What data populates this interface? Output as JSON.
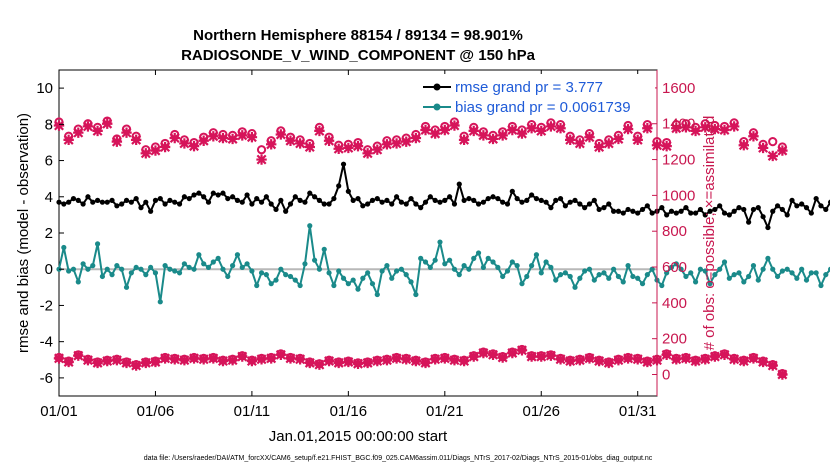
{
  "chart_data": {
    "type": "line",
    "title_line1": "Northern Hemisphere 88154 / 89134 = 98.901%",
    "title_line2": "RADIOSONDE_V_WIND_COMPONENT @ 150 hPa",
    "xlabel": "Jan.01,2015 00:00:00 start",
    "ylabel_left": "rmse and bias (model - observation)",
    "ylabel_right": "# of obs: o=possible; ×=assimilated",
    "footnote": "data file: /Users/raeder/DAI/ATM_forcXX/CAM6_setup/f.e21.FHIST_BGC.f09_025.CAM6assim.011/Diags_NTrS_2017-02/Diags_NTrS_2015-01/obs_diag_output.nc",
    "x_tick_values": [
      1,
      6,
      11,
      16,
      21,
      26,
      31
    ],
    "x_tick_labels": [
      "01/01",
      "01/06",
      "01/11",
      "01/16",
      "01/21",
      "01/26",
      "01/31"
    ],
    "xlim": [
      1,
      32
    ],
    "ylim_left": [
      -7,
      11
    ],
    "ylim_right": [
      -120,
      1700
    ],
    "y_left_ticks": [
      10,
      8,
      6,
      4,
      2,
      0,
      -2,
      -4,
      -6
    ],
    "y_right_ticks": [
      1600,
      1400,
      1200,
      1000,
      800,
      600,
      400,
      200,
      0
    ],
    "zero_line": 0,
    "colors": {
      "rmse": "#000000",
      "bias": "#1a8a8a",
      "obs": "#d6145a",
      "zero": "#b8b8b8",
      "legend_text": "#1f5bd8",
      "right_axis": "#c8174f"
    },
    "series": [
      {
        "name": "rmse grand pr = 3.777",
        "axis": "left",
        "x_start": 1,
        "x_step": 0.25,
        "values": [
          3.7,
          3.6,
          3.7,
          3.9,
          3.8,
          3.6,
          4.0,
          3.7,
          3.8,
          3.7,
          3.7,
          3.8,
          3.5,
          3.6,
          3.8,
          3.7,
          3.9,
          3.4,
          3.7,
          3.2,
          3.8,
          3.9,
          3.6,
          3.8,
          3.7,
          3.6,
          4.0,
          3.9,
          4.1,
          4.2,
          4.0,
          3.7,
          4.2,
          4.1,
          4.2,
          3.9,
          4.0,
          3.8,
          3.7,
          4.1,
          3.6,
          3.9,
          3.7,
          4.0,
          3.6,
          3.3,
          3.8,
          3.2,
          3.6,
          4.0,
          3.8,
          3.7,
          4.2,
          4.0,
          3.8,
          3.6,
          3.6,
          3.9,
          4.6,
          5.8,
          4.3,
          3.8,
          3.9,
          3.5,
          3.6,
          3.8,
          3.9,
          3.7,
          3.8,
          3.6,
          4.0,
          3.7,
          3.6,
          3.9,
          3.6,
          3.4,
          3.7,
          4.0,
          3.8,
          3.7,
          3.8,
          4.0,
          3.6,
          4.7,
          3.8,
          3.9,
          3.8,
          3.6,
          3.7,
          3.9,
          4.0,
          3.9,
          3.7,
          3.6,
          4.3,
          3.9,
          3.7,
          3.8,
          4.1,
          3.9,
          3.8,
          3.7,
          3.4,
          3.8,
          3.9,
          3.5,
          3.7,
          3.8,
          3.6,
          3.4,
          3.6,
          3.8,
          3.3,
          3.4,
          3.6,
          3.2,
          3.2,
          3.1,
          3.3,
          3.2,
          3.1,
          3.3,
          3.5,
          3.1,
          3.2,
          3.4,
          3.0,
          3.2,
          3.1,
          3.2,
          3.4,
          3.1,
          3.1,
          3.3,
          3.0,
          3.2,
          3.3,
          3.5,
          3.1,
          3.0,
          3.2,
          3.4,
          3.3,
          2.6,
          3.3,
          3.4,
          2.9,
          2.3,
          3.2,
          3.5,
          3.3,
          3.0,
          3.8,
          3.5,
          3.6,
          3.4,
          3.1,
          3.9,
          3.5,
          3.3,
          3.7,
          3.4,
          3.8,
          3.6,
          3.7,
          3.5,
          3.9,
          3.5,
          3.6,
          3.8,
          4.0,
          3.9,
          3.7,
          3.5,
          3.6,
          3.6,
          3.8,
          4.3,
          3.7,
          3.8,
          3.8,
          3.7,
          3.8,
          3.6,
          3.5,
          3.3,
          3.5,
          3.6,
          3.4,
          3.4,
          3.7,
          3.5,
          3.2,
          3.6,
          3.5,
          3.3,
          3.6,
          3.0,
          3.6,
          2.7
        ]
      },
      {
        "name": "bias grand pr = 0.0061739",
        "axis": "left",
        "x_start": 1,
        "x_step": 0.25,
        "values": [
          0.0,
          1.2,
          -0.1,
          0.0,
          -0.7,
          0.3,
          0.0,
          0.2,
          1.4,
          -0.4,
          0.0,
          -0.3,
          0.2,
          0.0,
          -1.0,
          -0.2,
          0.1,
          0.0,
          -0.3,
          0.1,
          -0.2,
          -1.8,
          0.2,
          0.0,
          -0.1,
          -0.2,
          0.3,
          0.1,
          0.0,
          0.8,
          0.3,
          0.1,
          0.4,
          0.6,
          0.0,
          -0.4,
          0.2,
          0.8,
          0.1,
          0.3,
          -0.1,
          -0.9,
          -0.2,
          -0.3,
          -0.8,
          -0.6,
          0.0,
          -0.3,
          -0.4,
          -0.6,
          -0.9,
          0.3,
          2.4,
          0.5,
          0.0,
          1.1,
          -0.2,
          -0.9,
          -0.1,
          -0.5,
          -0.8,
          -0.6,
          -1.1,
          -0.5,
          -0.2,
          -0.8,
          -1.4,
          -0.1,
          0.2,
          -0.5,
          -0.1,
          0.0,
          -0.3,
          -0.7,
          -1.4,
          0.6,
          0.4,
          0.1,
          0.5,
          1.5,
          0.3,
          0.5,
          0.0,
          -0.3,
          0.2,
          0.0,
          0.6,
          0.9,
          0.1,
          0.6,
          0.4,
          0.1,
          -0.4,
          -0.1,
          0.4,
          0.2,
          -0.8,
          -0.4,
          0.2,
          0.8,
          -0.2,
          0.4,
          0.1,
          -0.6,
          -0.3,
          -0.2,
          -0.4,
          -1.0,
          -0.5,
          -0.1,
          0.0,
          -0.6,
          -0.3,
          -0.2,
          -0.5,
          0.0,
          -0.4,
          -0.7,
          0.2,
          -0.4,
          -0.5,
          -0.8,
          -0.3,
          0.0,
          -0.6,
          -0.9,
          -0.2,
          0.1,
          0.3,
          0.0,
          -0.4,
          -0.2,
          -0.7,
          0.0,
          -0.1,
          -0.8,
          -0.3,
          0.0,
          0.4,
          -0.5,
          -0.3,
          -0.2,
          -0.7,
          -0.4,
          0.2,
          -0.6,
          0.0,
          0.6,
          0.0,
          -0.4,
          -0.1,
          0.0,
          -0.2,
          -0.5,
          0.0,
          -0.6,
          -0.2,
          -0.2,
          -0.9,
          -0.3,
          0.0,
          -0.6,
          -0.2,
          0.5,
          -0.3,
          -0.9,
          0.1,
          -0.3,
          -0.6,
          -0.1,
          0.3,
          0.1,
          0.3,
          1.3,
          0.2,
          0.6,
          0.0,
          -0.3,
          0.2,
          -0.5,
          -0.1,
          0.0,
          0.5,
          0.1,
          0.1,
          0.2,
          0.4,
          0.0,
          0.7,
          0.2,
          -0.1,
          0.3,
          -0.3,
          0.2,
          0.4,
          -0.1,
          0.0,
          0.0,
          0.3,
          -0.4,
          0.0,
          0.0,
          0.1
        ]
      },
      {
        "name": "possible obs",
        "axis": "right",
        "marker": "circle",
        "x_start": 1,
        "x_step": 0.5,
        "values": [
          1410,
          1330,
          1370,
          1400,
          1380,
          1415,
          1315,
          1370,
          1330,
          1255,
          1270,
          1290,
          1340,
          1310,
          1295,
          1325,
          1350,
          1340,
          1335,
          1355,
          1345,
          1255,
          1305,
          1360,
          1325,
          1310,
          1290,
          1380,
          1325,
          1280,
          1285,
          1295,
          1255,
          1275,
          1305,
          1310,
          1320,
          1340,
          1385,
          1365,
          1385,
          1410,
          1330,
          1380,
          1355,
          1335,
          1355,
          1385,
          1365,
          1395,
          1380,
          1405,
          1395,
          1330,
          1310,
          1345,
          1290,
          1310,
          1335,
          1390,
          1330,
          1395,
          1300,
          1295,
          1395,
          1400,
          1380,
          1400,
          1390,
          1385,
          1405,
          1300,
          1350,
          1285,
          1300,
          1270
        ]
      },
      {
        "name": "assimilated obs",
        "axis": "right",
        "marker": "x",
        "x_start": 1,
        "x_step": 0.5,
        "values": [
          1390,
          1310,
          1350,
          1385,
          1360,
          1400,
          1300,
          1350,
          1310,
          1235,
          1250,
          1270,
          1320,
          1290,
          1275,
          1305,
          1330,
          1320,
          1315,
          1335,
          1325,
          1200,
          1285,
          1340,
          1305,
          1290,
          1270,
          1360,
          1305,
          1260,
          1265,
          1275,
          1235,
          1255,
          1285,
          1290,
          1300,
          1320,
          1365,
          1345,
          1365,
          1390,
          1310,
          1360,
          1335,
          1315,
          1335,
          1365,
          1345,
          1375,
          1360,
          1385,
          1375,
          1310,
          1290,
          1325,
          1270,
          1290,
          1315,
          1370,
          1310,
          1375,
          1280,
          1275,
          1375,
          1380,
          1360,
          1380,
          1370,
          1365,
          1385,
          1280,
          1330,
          1265,
          1220,
          1250
        ]
      },
      {
        "name": "possible obs (lower)",
        "axis": "right",
        "marker": "circle",
        "x_start": 1,
        "x_step": 0.5,
        "values": [
          95,
          75,
          110,
          85,
          70,
          80,
          85,
          70,
          55,
          70,
          75,
          95,
          90,
          85,
          95,
          90,
          95,
          80,
          85,
          105,
          80,
          90,
          95,
          115,
          95,
          90,
          70,
          60,
          80,
          70,
          75,
          65,
          70,
          80,
          85,
          95,
          90,
          80,
          70,
          90,
          95,
          85,
          80,
          105,
          125,
          115,
          100,
          125,
          140,
          105,
          105,
          110,
          90,
          80,
          85,
          95,
          80,
          70,
          85,
          95,
          90,
          75,
          85,
          115,
          90,
          95,
          80,
          90,
          105,
          115,
          90,
          80,
          95,
          75,
          55,
          5
        ]
      },
      {
        "name": "assimilated obs (lower)",
        "axis": "right",
        "marker": "x",
        "x_start": 1,
        "x_step": 0.5,
        "values": [
          90,
          70,
          105,
          80,
          65,
          75,
          80,
          65,
          50,
          65,
          70,
          90,
          85,
          80,
          90,
          85,
          90,
          75,
          80,
          100,
          75,
          85,
          90,
          110,
          90,
          85,
          65,
          55,
          75,
          65,
          70,
          60,
          65,
          75,
          80,
          90,
          85,
          75,
          65,
          85,
          90,
          80,
          75,
          100,
          120,
          110,
          95,
          120,
          135,
          100,
          100,
          105,
          85,
          75,
          80,
          90,
          75,
          65,
          80,
          90,
          85,
          70,
          80,
          110,
          85,
          90,
          75,
          85,
          100,
          110,
          85,
          75,
          90,
          70,
          50,
          0
        ]
      }
    ]
  }
}
